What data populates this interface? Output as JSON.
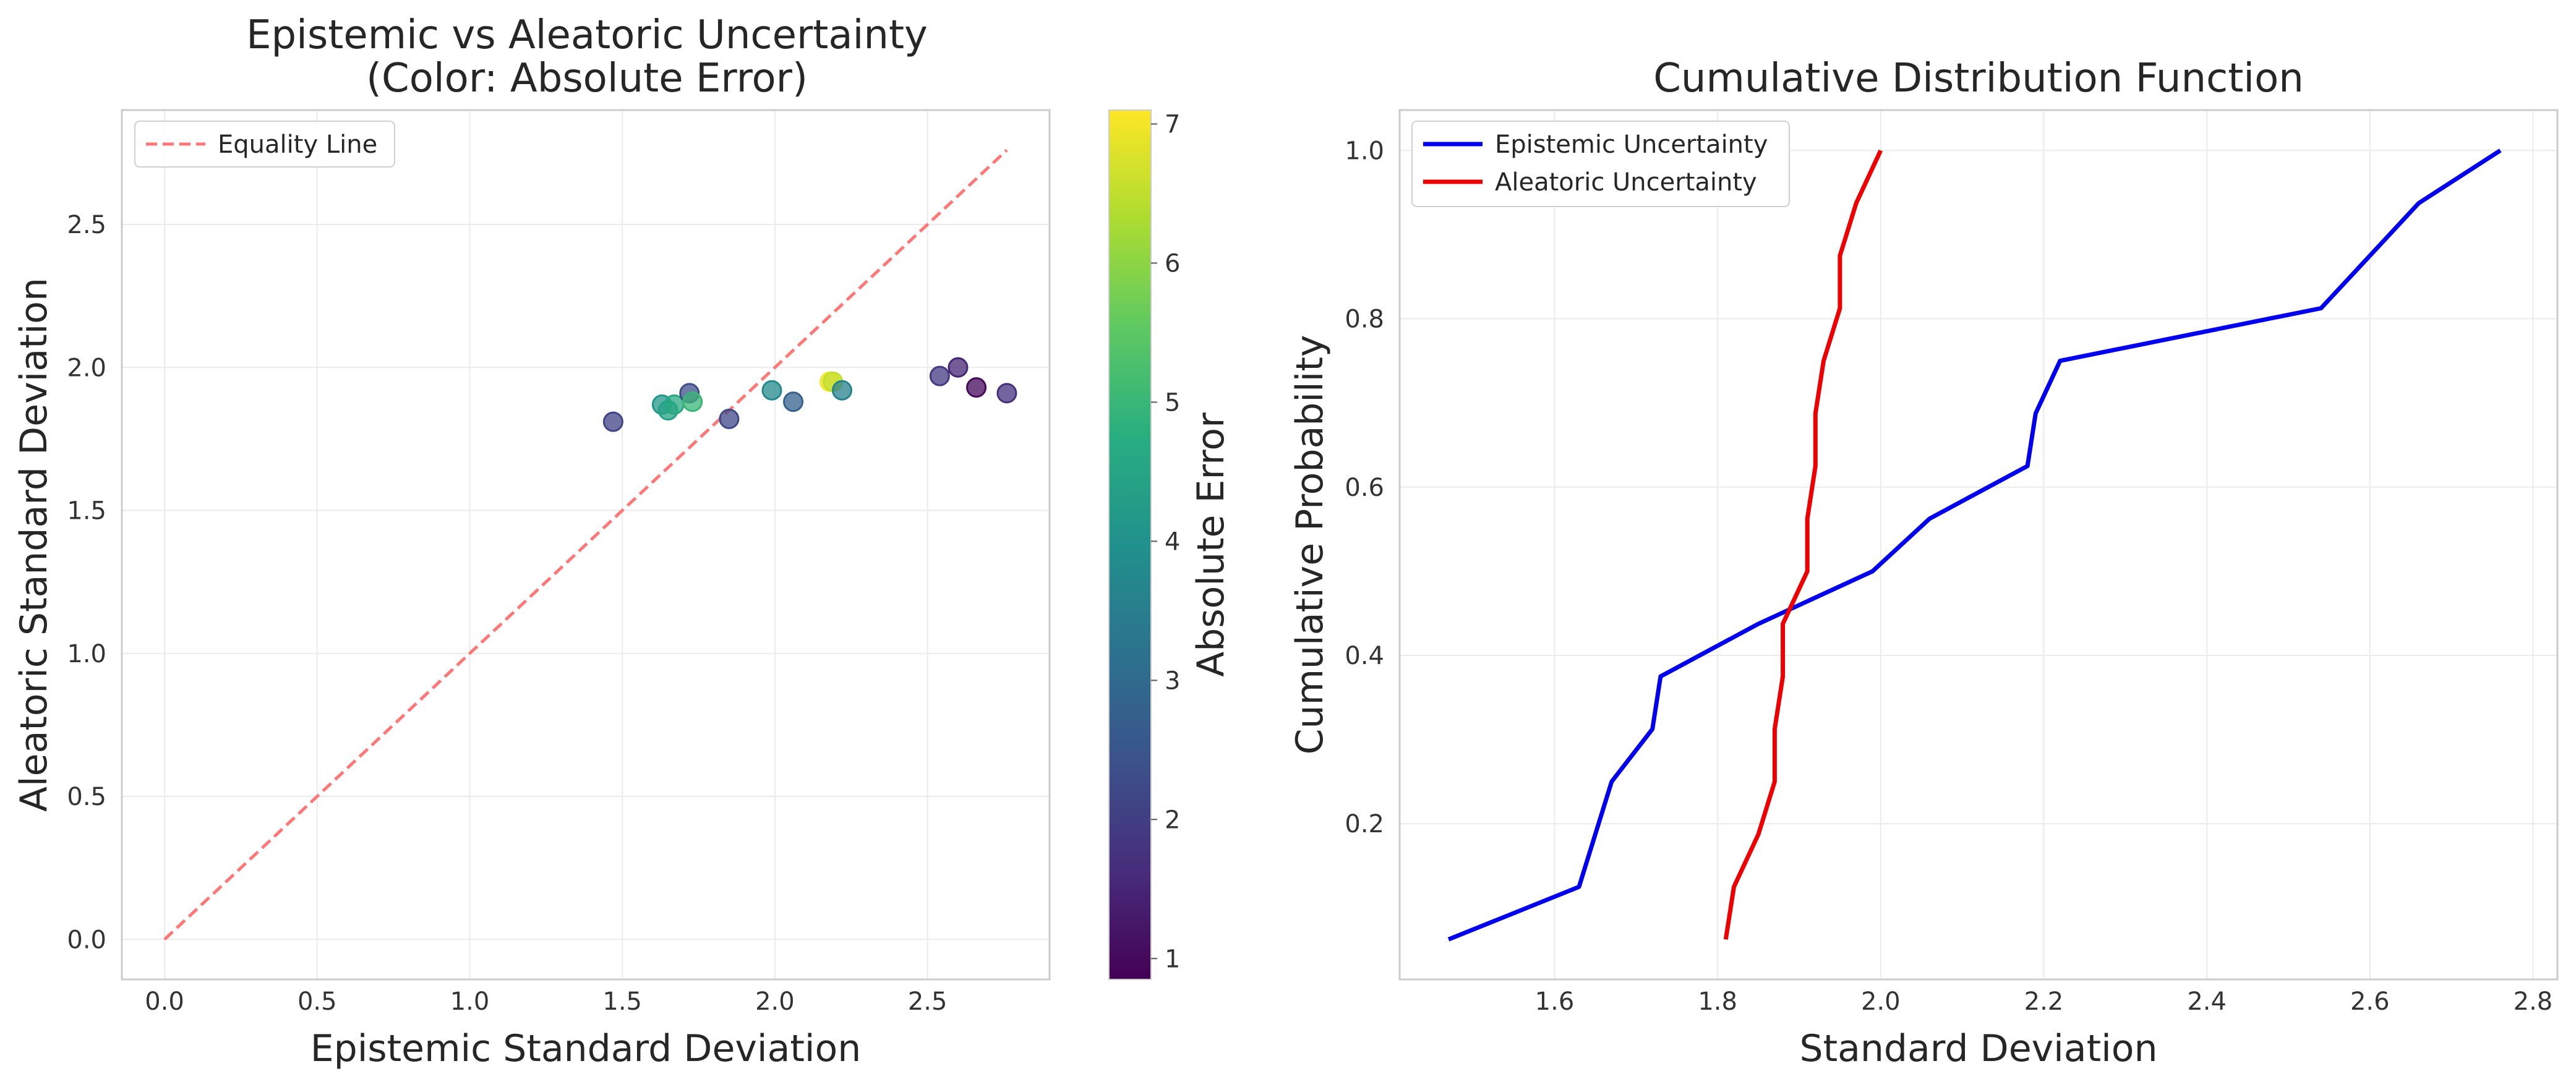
{
  "chart_data": [
    {
      "type": "scatter",
      "title": "Epistemic vs Aleatoric Uncertainty\n(Color: Absolute Error)",
      "xlabel": "Epistemic Standard Deviation",
      "ylabel": "Aleatoric Standard Deviation",
      "xlim": [
        -0.14,
        2.9
      ],
      "ylim": [
        -0.14,
        2.9
      ],
      "xticks": [
        "0.0",
        "0.5",
        "1.0",
        "1.5",
        "2.0",
        "2.5"
      ],
      "yticks": [
        "0.0",
        "0.5",
        "1.0",
        "1.5",
        "2.0",
        "2.5"
      ],
      "grid": true,
      "colormap": "viridis",
      "colorbar": {
        "label": "Absolute Error",
        "range": [
          0.85,
          7.1
        ],
        "ticks": [
          "1",
          "2",
          "3",
          "4",
          "5",
          "6",
          "7"
        ]
      },
      "points": [
        {
          "x": 1.47,
          "y": 1.81,
          "error": 2.1
        },
        {
          "x": 1.63,
          "y": 1.87,
          "error": 4.1
        },
        {
          "x": 1.65,
          "y": 1.85,
          "error": 4.4
        },
        {
          "x": 1.67,
          "y": 1.87,
          "error": 4.6
        },
        {
          "x": 1.72,
          "y": 1.91,
          "error": 2.3
        },
        {
          "x": 1.73,
          "y": 1.88,
          "error": 5.0
        },
        {
          "x": 1.85,
          "y": 1.82,
          "error": 2.2
        },
        {
          "x": 1.99,
          "y": 1.92,
          "error": 3.8
        },
        {
          "x": 2.06,
          "y": 1.88,
          "error": 2.8
        },
        {
          "x": 2.18,
          "y": 1.95,
          "error": 7.0
        },
        {
          "x": 2.19,
          "y": 1.95,
          "error": 6.5
        },
        {
          "x": 2.22,
          "y": 1.92,
          "error": 3.6
        },
        {
          "x": 2.54,
          "y": 1.97,
          "error": 1.9
        },
        {
          "x": 2.6,
          "y": 2.0,
          "error": 1.5
        },
        {
          "x": 2.66,
          "y": 1.93,
          "error": 1.0
        },
        {
          "x": 2.76,
          "y": 1.91,
          "error": 1.7
        }
      ],
      "equality_line": {
        "x": [
          0.0,
          2.76
        ],
        "y": [
          0.0,
          2.76
        ],
        "color": "#ff7777",
        "style": "dashed"
      },
      "legend": {
        "position": "top-left",
        "entries": [
          "Equality Line"
        ]
      }
    },
    {
      "type": "line",
      "title": "Cumulative Distribution Function",
      "xlabel": "Standard Deviation",
      "ylabel": "Cumulative Probability",
      "xlim": [
        1.41,
        2.83
      ],
      "ylim": [
        0.015,
        1.048
      ],
      "xticks": [
        "1.6",
        "1.8",
        "2.0",
        "2.2",
        "2.4",
        "2.6",
        "2.8"
      ],
      "yticks": [
        "0.2",
        "0.4",
        "0.6",
        "0.8",
        "1.0"
      ],
      "grid": true,
      "legend": {
        "position": "top-left"
      },
      "series": [
        {
          "name": "Epistemic Uncertainty",
          "color": "#0000ee",
          "x": [
            1.47,
            1.63,
            1.65,
            1.67,
            1.72,
            1.73,
            1.85,
            1.99,
            2.06,
            2.18,
            2.19,
            2.22,
            2.54,
            2.6,
            2.66,
            2.76
          ],
          "y": [
            0.0625,
            0.125,
            0.1875,
            0.25,
            0.3125,
            0.375,
            0.4375,
            0.5,
            0.5625,
            0.625,
            0.6875,
            0.75,
            0.8125,
            0.875,
            0.9375,
            1.0
          ]
        },
        {
          "name": "Aleatoric Uncertainty",
          "color": "#ee0000",
          "x": [
            1.81,
            1.82,
            1.85,
            1.87,
            1.87,
            1.88,
            1.88,
            1.91,
            1.91,
            1.92,
            1.92,
            1.93,
            1.95,
            1.95,
            1.97,
            2.0
          ],
          "y": [
            0.0625,
            0.125,
            0.1875,
            0.25,
            0.3125,
            0.375,
            0.4375,
            0.5,
            0.5625,
            0.625,
            0.6875,
            0.75,
            0.8125,
            0.875,
            0.9375,
            1.0
          ]
        }
      ]
    }
  ]
}
